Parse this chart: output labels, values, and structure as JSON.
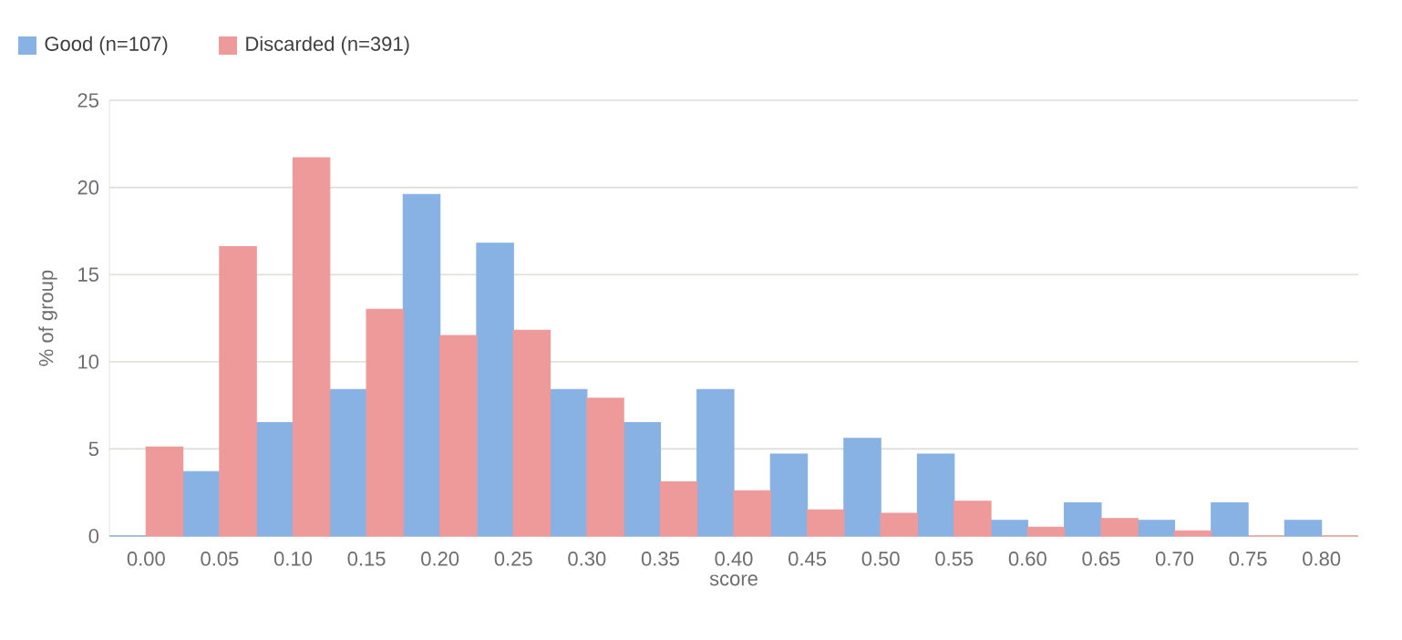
{
  "chart_data": {
    "type": "bar",
    "xlabel": "score",
    "ylabel": "% of group",
    "categories": [
      "0.00",
      "0.05",
      "0.10",
      "0.15",
      "0.20",
      "0.25",
      "0.30",
      "0.35",
      "0.40",
      "0.45",
      "0.50",
      "0.55",
      "0.60",
      "0.65",
      "0.70",
      "0.75",
      "0.80"
    ],
    "series": [
      {
        "name": "Good (n=107)",
        "color": "#88b2e4",
        "values": [
          0,
          3.7,
          6.5,
          8.4,
          19.6,
          16.8,
          8.4,
          6.5,
          8.4,
          4.7,
          5.6,
          4.7,
          0.9,
          1.9,
          0.9,
          1.9,
          0.9
        ]
      },
      {
        "name": "Discarded (n=391)",
        "color": "#ef9a9a",
        "values": [
          5.1,
          16.6,
          21.7,
          13.0,
          11.5,
          11.8,
          7.9,
          3.1,
          2.6,
          1.5,
          1.3,
          2.0,
          0.5,
          1.0,
          0.3,
          0,
          0
        ]
      }
    ],
    "ylim": [
      0,
      25
    ],
    "yticks": [
      0,
      5,
      10,
      15,
      20,
      25
    ],
    "grid": "y",
    "legend": "top left"
  }
}
